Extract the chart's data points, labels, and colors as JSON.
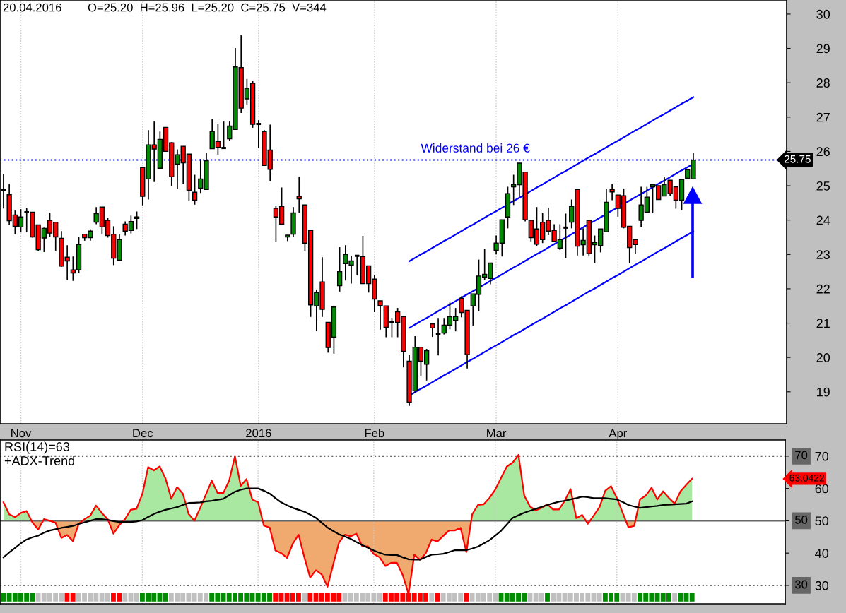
{
  "chart_data": [
    {
      "type": "candlestick",
      "title": "20.04.2016",
      "subtitle": "O=25.20  H=25.96  L=25.20  C=25.75  V=344",
      "categories": [
        null,
        null,
        null,
        "Nov",
        null,
        null,
        null,
        null,
        null,
        null,
        null,
        null,
        null,
        null,
        null,
        null,
        null,
        null,
        null,
        null,
        null,
        null,
        null,
        null,
        "Dec",
        null,
        null,
        null,
        null,
        null,
        null,
        null,
        null,
        null,
        null,
        null,
        null,
        null,
        null,
        null,
        null,
        null,
        null,
        null,
        "2016",
        null,
        null,
        null,
        null,
        null,
        null,
        null,
        null,
        null,
        null,
        null,
        null,
        null,
        null,
        null,
        null,
        null,
        null,
        null,
        "Feb",
        null,
        null,
        null,
        null,
        null,
        null,
        null,
        null,
        null,
        null,
        null,
        null,
        null,
        null,
        null,
        null,
        null,
        null,
        null,
        null,
        "Mar",
        null,
        null,
        null,
        null,
        null,
        null,
        null,
        null,
        null,
        null,
        null,
        null,
        null,
        null,
        null,
        null,
        null,
        null,
        null,
        null,
        "Apr",
        null,
        null,
        null,
        null,
        null,
        null,
        null,
        null,
        null,
        null,
        null,
        null,
        null,
        null,
        null,
        null,
        null,
        null,
        null,
        null,
        null,
        null,
        null,
        null,
        null,
        null,
        null,
        null,
        null
      ],
      "ohlc": [
        [
          24.87,
          25.34,
          24.34,
          24.87
        ],
        [
          24.74,
          25.06,
          23.87,
          23.98
        ],
        [
          24.15,
          24.28,
          23.59,
          23.82
        ],
        [
          23.8,
          24.32,
          23.64,
          24.09
        ],
        [
          24.23,
          24.36,
          23.65,
          24.23
        ],
        [
          24.23,
          24.23,
          23.49,
          23.51
        ],
        [
          23.86,
          23.86,
          23.11,
          23.14
        ],
        [
          23.48,
          23.78,
          23.07,
          23.76
        ],
        [
          23.99,
          24.22,
          23.5,
          23.62
        ],
        [
          23.94,
          23.94,
          23.11,
          23.51
        ],
        [
          23.47,
          23.68,
          22.64,
          22.66
        ],
        [
          22.92,
          23.27,
          22.25,
          22.81
        ],
        [
          22.55,
          22.94,
          22.23,
          22.46
        ],
        [
          22.55,
          23.5,
          22.45,
          23.29
        ],
        [
          23.59,
          23.59,
          23.4,
          23.49
        ],
        [
          23.49,
          23.73,
          23.4,
          23.68
        ],
        [
          23.94,
          24.38,
          23.88,
          24.19
        ],
        [
          24.38,
          24.38,
          23.59,
          23.8
        ],
        [
          23.99,
          24.07,
          23.49,
          23.55
        ],
        [
          23.59,
          23.82,
          22.69,
          22.89
        ],
        [
          22.83,
          23.59,
          22.83,
          23.43
        ],
        [
          23.88,
          23.96,
          23.55,
          23.68
        ],
        [
          23.7,
          24.13,
          23.61,
          23.96
        ],
        [
          24.09,
          24.25,
          23.74,
          24.05
        ],
        [
          25.53,
          25.53,
          24.43,
          24.69
        ],
        [
          25.2,
          26.62,
          24.6,
          26.19
        ],
        [
          26.19,
          26.87,
          25.11,
          26.07
        ],
        [
          25.51,
          26.58,
          25.51,
          26.35
        ],
        [
          26.7,
          26.7,
          26.0,
          26.0
        ],
        [
          26.25,
          26.27,
          24.99,
          25.26
        ],
        [
          25.63,
          26.06,
          24.9,
          25.9
        ],
        [
          26.15,
          26.15,
          25.05,
          25.67
        ],
        [
          25.92,
          25.92,
          24.57,
          24.87
        ],
        [
          24.81,
          25.32,
          24.45,
          24.58
        ],
        [
          24.93,
          25.78,
          24.79,
          25.2
        ],
        [
          24.89,
          25.96,
          24.89,
          25.73
        ],
        [
          26.08,
          26.95,
          26.08,
          26.58
        ],
        [
          26.29,
          26.81,
          25.91,
          26.12
        ],
        [
          26.1,
          26.87,
          26.08,
          26.1
        ],
        [
          26.37,
          26.87,
          26.31,
          26.74
        ],
        [
          26.64,
          29.01,
          26.64,
          28.46
        ],
        [
          28.44,
          29.38,
          27.12,
          27.26
        ],
        [
          27.53,
          28.11,
          27.37,
          27.84
        ],
        [
          27.98,
          28.05,
          26.69,
          26.79
        ],
        [
          26.8,
          26.91,
          26.09,
          26.8
        ],
        [
          26.58,
          26.62,
          25.59,
          25.59
        ],
        [
          26.04,
          26.78,
          25.13,
          25.48
        ],
        [
          24.34,
          24.42,
          23.36,
          24.09
        ],
        [
          24.4,
          24.95,
          23.88,
          23.88
        ],
        [
          23.51,
          23.56,
          23.39,
          23.56
        ],
        [
          23.59,
          24.38,
          23.5,
          24.21
        ],
        [
          24.69,
          25.27,
          24.22,
          24.62
        ],
        [
          24.44,
          24.44,
          23.09,
          23.33
        ],
        [
          23.7,
          23.7,
          21.18,
          21.53
        ],
        [
          21.5,
          21.98,
          20.77,
          21.89
        ],
        [
          22.2,
          22.92,
          21.18,
          21.4
        ],
        [
          21.02,
          21.02,
          20.14,
          20.29
        ],
        [
          20.59,
          21.51,
          20.11,
          21.47
        ],
        [
          22.09,
          23.21,
          21.92,
          22.5
        ],
        [
          22.73,
          23.27,
          22.24,
          23.0
        ],
        [
          22.69,
          22.96,
          22.15,
          22.81
        ],
        [
          22.96,
          22.96,
          22.39,
          22.96
        ],
        [
          22.94,
          23.54,
          22.15,
          22.15
        ],
        [
          22.67,
          22.67,
          21.89,
          22.15
        ],
        [
          22.28,
          22.39,
          21.32,
          21.7
        ],
        [
          21.65,
          21.65,
          20.81,
          21.51
        ],
        [
          21.5,
          21.5,
          20.59,
          20.88
        ],
        [
          21.03,
          21.15,
          20.59,
          21.03
        ],
        [
          21.33,
          21.44,
          20.59,
          21.02
        ],
        [
          21.19,
          21.19,
          19.71,
          20.18
        ],
        [
          19.89,
          20.07,
          18.59,
          18.7
        ],
        [
          19.03,
          20.62,
          18.96,
          20.3
        ],
        [
          20.3,
          20.3,
          19.45,
          19.89
        ],
        [
          19.8,
          20.25,
          19.33,
          20.2
        ],
        [
          20.98,
          20.98,
          20.6,
          20.86
        ],
        [
          20.69,
          21.15,
          20.06,
          20.69
        ],
        [
          20.71,
          21.15,
          20.67,
          20.94
        ],
        [
          20.94,
          21.6,
          20.82,
          21.19
        ],
        [
          21.08,
          21.44,
          20.76,
          21.19
        ],
        [
          21.72,
          21.78,
          21.17,
          21.31
        ],
        [
          21.37,
          21.37,
          19.68,
          20.08
        ],
        [
          21.5,
          21.85,
          20.93,
          21.85
        ],
        [
          21.84,
          22.85,
          21.34,
          22.37
        ],
        [
          22.34,
          23.17,
          22.25,
          22.42
        ],
        [
          22.3,
          22.75,
          22.13,
          22.75
        ],
        [
          23.12,
          23.55,
          23.0,
          23.33
        ],
        [
          23.33,
          24.01,
          22.94,
          24.01
        ],
        [
          24.09,
          24.97,
          23.76,
          24.77
        ],
        [
          24.97,
          25.32,
          24.44,
          25.03
        ],
        [
          25.03,
          25.66,
          24.68,
          25.66
        ],
        [
          25.4,
          25.4,
          23.96,
          24.01
        ],
        [
          23.99,
          23.99,
          23.38,
          23.49
        ],
        [
          23.74,
          24.38,
          23.24,
          23.3
        ],
        [
          23.94,
          24.2,
          23.33,
          23.43
        ],
        [
          23.99,
          24.36,
          23.56,
          23.68
        ],
        [
          23.7,
          23.88,
          23.38,
          23.38
        ],
        [
          23.18,
          23.88,
          23.13,
          23.43
        ],
        [
          23.78,
          24.19,
          22.89,
          23.78
        ],
        [
          23.94,
          24.6,
          23.76,
          24.4
        ],
        [
          24.89,
          24.89,
          22.97,
          23.24
        ],
        [
          23.28,
          23.76,
          22.97,
          23.41
        ],
        [
          23.99,
          23.99,
          22.94,
          23.02
        ],
        [
          23.28,
          23.55,
          22.76,
          23.35
        ],
        [
          23.26,
          23.74,
          23.06,
          23.74
        ],
        [
          23.66,
          24.92,
          23.66,
          24.52
        ],
        [
          24.89,
          25.06,
          24.58,
          24.82
        ],
        [
          24.73,
          24.73,
          24.1,
          24.34
        ],
        [
          24.71,
          24.92,
          23.76,
          23.79
        ],
        [
          23.82,
          23.82,
          22.74,
          23.2
        ],
        [
          23.43,
          23.43,
          23.02,
          23.29
        ],
        [
          23.99,
          24.97,
          23.81,
          24.44
        ],
        [
          24.23,
          24.97,
          24.23,
          24.67
        ],
        [
          24.97,
          25.03,
          24.2,
          25.03
        ],
        [
          25.0,
          25.0,
          24.6,
          24.6
        ],
        [
          24.7,
          25.27,
          24.7,
          25.03
        ],
        [
          25.16,
          25.16,
          24.7,
          24.77
        ],
        [
          24.97,
          24.97,
          24.33,
          24.58
        ],
        [
          24.58,
          25.18,
          24.29,
          25.18
        ],
        [
          25.22,
          25.47,
          25.22,
          25.47
        ],
        [
          25.2,
          25.96,
          25.2,
          25.75
        ],
        null,
        null,
        null,
        null,
        null,
        null,
        null,
        null,
        null,
        null,
        null,
        null,
        null,
        null,
        null,
        null
      ],
      "colors": [
        "#000000",
        "#ff0000",
        "#ff0000",
        "#008c00",
        "#000000",
        "#ff0000",
        "#ff0000",
        "#008c00",
        "#ff0000",
        "#ff0000",
        "#ff0000",
        "#ff0000",
        "#ff0000",
        "#008c00",
        "#ff0000",
        "#008c00",
        "#008c00",
        "#ff0000",
        "#ff0000",
        "#ff0000",
        "#008c00",
        "#ff0000",
        "#008c00",
        "#ff0000",
        "#ff0000",
        "#008c00",
        "#ff0000",
        "#008c00",
        "#ff0000",
        "#ff0000",
        "#008c00",
        "#ff0000",
        "#ff0000",
        "#ff0000",
        "#008c00",
        "#008c00",
        "#008c00",
        "#ff0000",
        "#000000",
        "#008c00",
        "#008c00",
        "#ff0000",
        "#008c00",
        "#ff0000",
        "#000000",
        "#ff0000",
        "#ff0000",
        "#ff0000",
        "#ff0000",
        "#008c00",
        "#008c00",
        "#ff0000",
        "#ff0000",
        "#ff0000",
        "#008c00",
        "#ff0000",
        "#ff0000",
        "#008c00",
        "#008c00",
        "#008c00",
        "#008c00",
        "#000000",
        "#ff0000",
        "#ff0000",
        "#ff0000",
        "#ff0000",
        "#ff0000",
        "#000000",
        "#ff0000",
        "#ff0000",
        "#ff0000",
        "#008c00",
        "#ff0000",
        "#008c00",
        "#ff0000",
        "#000000",
        "#008c00",
        "#008c00",
        "#008c00",
        "#ff0000",
        "#ff0000",
        "#008c00",
        "#008c00",
        "#008c00",
        "#008c00",
        "#008c00",
        "#008c00",
        "#008c00",
        "#008c00",
        "#008c00",
        "#ff0000",
        "#ff0000",
        "#ff0000",
        "#ff0000",
        "#ff0000",
        "#ff0000",
        "#008c00",
        "#000000",
        "#008c00",
        "#ff0000",
        "#008c00",
        "#ff0000",
        "#008c00",
        "#008c00",
        "#008c00",
        "#ff0000",
        "#ff0000",
        "#ff0000",
        "#ff0000",
        "#ff0000",
        "#008c00",
        "#008c00",
        "#008c00",
        "#ff0000",
        "#008c00",
        "#ff0000",
        "#ff0000",
        "#008c00",
        "#008c00",
        "#008c00",
        null,
        null,
        null,
        null,
        null,
        null,
        null,
        null,
        null,
        null,
        null,
        null,
        null,
        null,
        null,
        null
      ],
      "series": [
        {
          "type": "line",
          "color": "#0000ff",
          "values": [
            null,
            null,
            null,
            null,
            null,
            null,
            null,
            null,
            null,
            null,
            null,
            null,
            null,
            null,
            null,
            null,
            null,
            null,
            null,
            null,
            null,
            null,
            null,
            null,
            null,
            null,
            null,
            null,
            null,
            null,
            null,
            null,
            null,
            null,
            null,
            null,
            null,
            null,
            null,
            null,
            null,
            null,
            null,
            null,
            null,
            null,
            null,
            null,
            null,
            null,
            null,
            null,
            null,
            null,
            null,
            null,
            null,
            null,
            null,
            null,
            null,
            null,
            null,
            null,
            null,
            null,
            null,
            null,
            null,
            null,
            22.8,
            22.9,
            23.0,
            23.09,
            23.19,
            23.29,
            23.39,
            23.48,
            23.58,
            23.68,
            23.78,
            23.87,
            23.97,
            24.07,
            24.17,
            24.26,
            24.36,
            24.46,
            24.56,
            24.65,
            24.75,
            24.85,
            24.95,
            25.04,
            25.14,
            25.24,
            25.34,
            25.43,
            25.53,
            25.63,
            25.73,
            25.83,
            25.92,
            26.02,
            26.12,
            26.22,
            26.31,
            26.41,
            26.51,
            26.61,
            26.7,
            26.8,
            26.9,
            27.0,
            27.09,
            27.19,
            27.29,
            27.39,
            27.48,
            27.58,
            null,
            null,
            null,
            null,
            null,
            null,
            null,
            null,
            null,
            null,
            null,
            null,
            null,
            null,
            null,
            null
          ]
        },
        {
          "type": "line",
          "color": "#0000ff",
          "values": [
            null,
            null,
            null,
            null,
            null,
            null,
            null,
            null,
            null,
            null,
            null,
            null,
            null,
            null,
            null,
            null,
            null,
            null,
            null,
            null,
            null,
            null,
            null,
            null,
            null,
            null,
            null,
            null,
            null,
            null,
            null,
            null,
            null,
            null,
            null,
            null,
            null,
            null,
            null,
            null,
            null,
            null,
            null,
            null,
            null,
            null,
            null,
            null,
            null,
            null,
            null,
            null,
            null,
            null,
            null,
            null,
            null,
            null,
            null,
            null,
            null,
            null,
            null,
            null,
            null,
            null,
            null,
            null,
            null,
            null,
            20.86,
            20.96,
            21.06,
            21.15,
            21.25,
            21.35,
            21.45,
            21.54,
            21.64,
            21.74,
            21.84,
            21.93,
            22.03,
            22.13,
            22.23,
            22.32,
            22.42,
            22.52,
            22.62,
            22.71,
            22.81,
            22.91,
            23.01,
            23.1,
            23.2,
            23.3,
            23.4,
            23.49,
            23.59,
            23.69,
            23.79,
            23.89,
            23.98,
            24.08,
            24.18,
            24.28,
            24.37,
            24.47,
            24.57,
            24.67,
            24.76,
            24.86,
            24.96,
            25.06,
            25.15,
            25.25,
            25.35,
            25.45,
            25.54,
            25.64,
            null,
            null,
            null,
            null,
            null,
            null,
            null,
            null,
            null,
            null,
            null,
            null,
            null,
            null,
            null,
            null
          ]
        },
        {
          "type": "line",
          "color": "#0000ff",
          "values": [
            null,
            null,
            null,
            null,
            null,
            null,
            null,
            null,
            null,
            null,
            null,
            null,
            null,
            null,
            null,
            null,
            null,
            null,
            null,
            null,
            null,
            null,
            null,
            null,
            null,
            null,
            null,
            null,
            null,
            null,
            null,
            null,
            null,
            null,
            null,
            null,
            null,
            null,
            null,
            null,
            null,
            null,
            null,
            null,
            null,
            null,
            null,
            null,
            null,
            null,
            null,
            null,
            null,
            null,
            null,
            null,
            null,
            null,
            null,
            null,
            null,
            null,
            null,
            null,
            null,
            null,
            null,
            null,
            null,
            null,
            18.89,
            18.99,
            19.09,
            19.18,
            19.28,
            19.38,
            19.48,
            19.57,
            19.67,
            19.77,
            19.87,
            19.96,
            20.06,
            20.16,
            20.26,
            20.35,
            20.45,
            20.55,
            20.65,
            20.74,
            20.84,
            20.94,
            21.04,
            21.13,
            21.23,
            21.33,
            21.43,
            21.52,
            21.62,
            21.72,
            21.82,
            21.92,
            22.01,
            22.11,
            22.21,
            22.31,
            22.4,
            22.5,
            22.6,
            22.7,
            22.79,
            22.89,
            22.99,
            23.09,
            23.18,
            23.28,
            23.38,
            23.48,
            23.57,
            23.67,
            null,
            null,
            null,
            null,
            null,
            null,
            null,
            null,
            null,
            null,
            null,
            null,
            null,
            null,
            null,
            null
          ]
        }
      ],
      "ylim": [
        18.07,
        30.41
      ],
      "yticks": [
        19,
        20,
        21,
        22,
        23,
        24,
        25,
        26,
        27,
        28,
        29,
        30
      ],
      "grid": "x",
      "ref_lines": [
        {
          "axis": "y",
          "value": 25.75,
          "label": "25.75",
          "color": "#0000ff",
          "line_style": "dotted"
        }
      ],
      "annotations": [
        "Widerstand bei 26 €"
      ]
    },
    {
      "type": "line",
      "title": "RSI(14)=63",
      "subtitle": "+ADX-Trend",
      "categories": [
        null,
        null,
        null,
        null,
        null,
        null,
        null,
        null,
        null,
        null,
        null,
        null,
        null,
        null,
        null,
        null,
        null,
        null,
        null,
        null,
        null,
        null,
        null,
        null,
        null,
        null,
        null,
        null,
        null,
        null,
        null,
        null,
        null,
        null,
        null,
        null,
        null,
        null,
        null,
        null,
        null,
        null,
        null,
        null,
        null,
        null,
        null,
        null,
        null,
        null,
        null,
        null,
        null,
        null,
        null,
        null,
        null,
        null,
        null,
        null,
        null,
        null,
        null,
        null,
        null,
        null,
        null,
        null,
        null,
        null,
        null,
        null,
        null,
        null,
        null,
        null,
        null,
        null,
        null,
        null,
        null,
        null,
        null,
        null,
        null,
        null,
        null,
        null,
        null,
        null,
        null,
        null,
        null,
        null,
        null,
        null,
        null,
        null,
        null,
        null,
        null,
        null,
        null,
        null,
        null,
        null,
        null,
        null,
        null,
        null,
        null,
        null,
        null,
        null,
        null,
        null,
        null,
        null,
        null,
        null
      ],
      "series": [
        {
          "type": "line",
          "color": "#ff0000",
          "values": [
            55.7,
            52.0,
            51.1,
            52.4,
            53.0,
            49.5,
            47.3,
            50.5,
            50.0,
            49.4,
            44.7,
            45.6,
            43.7,
            49.0,
            50.5,
            51.6,
            54.7,
            52.4,
            50.5,
            46.0,
            48.6,
            50.5,
            53.4,
            53.7,
            58.3,
            66.6,
            65.6,
            66.8,
            63.1,
            56.8,
            60.4,
            58.4,
            52.1,
            50.0,
            54.0,
            58.2,
            62.4,
            58.6,
            58.6,
            62.4,
            70.0,
            60.8,
            62.9,
            56.6,
            55.7,
            48.5,
            47.9,
            40.8,
            40.0,
            38.5,
            42.9,
            45.7,
            38.7,
            32.4,
            34.7,
            33.4,
            29.6,
            36.6,
            43.3,
            45.7,
            45.2,
            46.0,
            42.1,
            42.1,
            39.7,
            38.7,
            36.0,
            37.0,
            37.0,
            33.2,
            27.3,
            39.5,
            37.9,
            40.0,
            44.2,
            43.6,
            45.3,
            47.0,
            47.0,
            47.8,
            40.3,
            52.0,
            54.9,
            55.1,
            57.1,
            59.7,
            63.3,
            66.8,
            68.0,
            70.4,
            57.8,
            54.4,
            53.2,
            54.0,
            55.1,
            53.5,
            53.5,
            56.2,
            59.8,
            50.8,
            51.8,
            49.1,
            51.6,
            54.2,
            59.3,
            60.7,
            57.1,
            52.5,
            48.0,
            48.4,
            56.6,
            57.8,
            60.2,
            56.6,
            59.1,
            57.1,
            55.3,
            59.1,
            61.1,
            63.0
          ]
        },
        {
          "type": "line",
          "color": "#000000",
          "values": [
            38.7,
            40.2,
            41.6,
            43.0,
            44.2,
            44.9,
            45.4,
            46.3,
            47.0,
            47.4,
            47.8,
            48.1,
            48.4,
            49.0,
            49.5,
            50.0,
            50.5,
            50.5,
            50.3,
            49.9,
            49.6,
            49.6,
            49.6,
            49.8,
            50.2,
            51.2,
            52.1,
            52.8,
            53.4,
            53.8,
            54.2,
            54.9,
            55.5,
            55.6,
            55.7,
            56.0,
            56.2,
            56.5,
            56.8,
            57.9,
            59.0,
            59.6,
            60.0,
            60.0,
            60.0,
            59.3,
            58.4,
            57.0,
            55.7,
            54.8,
            54.0,
            53.4,
            52.8,
            51.9,
            50.9,
            49.4,
            47.9,
            46.8,
            45.8,
            45.1,
            44.4,
            43.4,
            42.5,
            41.6,
            40.8,
            40.1,
            39.5,
            39.4,
            39.4,
            38.7,
            38.1,
            38.0,
            38.0,
            38.8,
            39.5,
            39.6,
            39.8,
            40.3,
            40.9,
            40.9,
            40.9,
            41.4,
            42.0,
            43.0,
            44.0,
            45.4,
            46.9,
            48.9,
            50.9,
            51.7,
            52.5,
            53.1,
            53.7,
            54.3,
            54.9,
            55.4,
            55.9,
            56.2,
            56.6,
            57.0,
            57.5,
            57.3,
            57.0,
            57.0,
            57.0,
            56.8,
            56.6,
            55.8,
            54.9,
            54.4,
            54.0,
            54.2,
            54.4,
            54.6,
            54.9,
            55.0,
            55.1,
            55.2,
            55.3,
            56.0
          ]
        },
        {
          "type": "bar",
          "base": [
            25.0,
            25.0,
            25.0,
            25.0,
            25.0,
            25.0,
            25.0,
            25.0,
            25.0,
            25.0,
            25.0,
            25.0,
            25.0,
            25.0,
            25.0,
            25.0,
            25.0,
            25.0,
            25.0,
            25.0,
            25.0,
            25.0,
            25.0,
            25.0,
            25.0,
            25.0,
            25.0,
            25.0,
            25.0,
            25.0,
            25.0,
            25.0,
            25.0,
            25.0,
            25.0,
            25.0,
            25.0,
            25.0,
            25.0,
            25.0,
            25.0,
            25.0,
            25.0,
            25.0,
            25.0,
            25.0,
            25.0,
            25.0,
            25.0,
            25.0,
            25.0,
            25.0,
            25.0,
            25.0,
            25.0,
            25.0,
            25.0,
            25.0,
            25.0,
            25.0,
            25.0,
            25.0,
            25.0,
            25.0,
            25.0,
            25.0,
            25.0,
            25.0,
            25.0,
            25.0,
            25.0,
            25.0,
            25.0,
            25.0,
            25.0,
            25.0,
            25.0,
            25.0,
            25.0,
            25.0,
            25.0,
            25.0,
            25.0,
            25.0,
            25.0,
            25.0,
            25.0,
            25.0,
            25.0,
            25.0,
            25.0,
            25.0,
            25.0,
            25.0,
            25.0,
            25.0,
            25.0,
            25.0,
            25.0,
            25.0,
            25.0,
            25.0,
            25.0,
            25.0,
            25.0,
            25.0,
            25.0,
            25.0,
            25.0,
            25.0,
            25.0,
            25.0,
            25.0,
            25.0,
            25.0,
            25.0,
            25.0,
            25.0,
            25.0,
            25.0
          ],
          "values": [
            2.6,
            2.6,
            2.6,
            2.6,
            2.6,
            2.6,
            2.6,
            2.6,
            2.6,
            2.6,
            2.6,
            2.6,
            2.6,
            2.6,
            2.6,
            2.6,
            2.6,
            2.6,
            2.6,
            2.6,
            2.6,
            2.6,
            2.6,
            2.6,
            2.6,
            2.6,
            2.6,
            2.6,
            2.6,
            2.6,
            2.6,
            2.6,
            2.6,
            2.6,
            2.6,
            2.6,
            2.6,
            2.6,
            2.6,
            2.6,
            2.6,
            2.6,
            2.6,
            2.6,
            2.6,
            2.6,
            2.6,
            2.6,
            2.6,
            2.6,
            2.6,
            2.6,
            2.6,
            2.6,
            2.6,
            2.6,
            2.6,
            2.6,
            2.6,
            2.6,
            2.6,
            2.6,
            2.6,
            2.6,
            2.6,
            2.6,
            2.6,
            2.6,
            2.6,
            2.6,
            2.6,
            2.6,
            2.6,
            2.6,
            2.6,
            2.6,
            2.6,
            2.6,
            2.6,
            2.6,
            2.6,
            2.6,
            2.6,
            2.6,
            2.6,
            2.6,
            2.6,
            2.6,
            2.6,
            2.6,
            2.6,
            2.6,
            2.6,
            2.6,
            2.6,
            2.6,
            2.6,
            2.6,
            2.6,
            2.6,
            2.6,
            2.6,
            2.6,
            2.6,
            2.6,
            2.6,
            2.6,
            2.6,
            2.6,
            2.6,
            2.6,
            2.6,
            2.6,
            2.6,
            2.6,
            2.6,
            2.6,
            2.6,
            2.6,
            2.6
          ],
          "colors": [
            "#008c00",
            "#008c00",
            "#008c00",
            "#008c00",
            "#008c00",
            "#008c00",
            "#c0c0c0",
            "#c0c0c0",
            "#c0c0c0",
            "#c0c0c0",
            "#c0c0c0",
            "#ff0000",
            "#ff0000",
            "#c0c0c0",
            "#c0c0c0",
            "#c0c0c0",
            "#c0c0c0",
            "#c0c0c0",
            "#c0c0c0",
            "#ff0000",
            "#ff0000",
            "#c0c0c0",
            "#c0c0c0",
            "#c0c0c0",
            "#008c00",
            "#008c00",
            "#008c00",
            "#008c00",
            "#008c00",
            "#c0c0c0",
            "#c0c0c0",
            "#c0c0c0",
            "#c0c0c0",
            "#c0c0c0",
            "#c0c0c0",
            "#c0c0c0",
            "#008c00",
            "#008c00",
            "#008c00",
            "#008c00",
            "#008c00",
            "#008c00",
            "#008c00",
            "#008c00",
            "#008c00",
            "#008c00",
            "#008c00",
            "#ff0000",
            "#ff0000",
            "#ff0000",
            "#ff0000",
            "#ff0000",
            "#c0c0c0",
            "#ff0000",
            "#ff0000",
            "#ff0000",
            "#ff0000",
            "#ff0000",
            "#ff0000",
            "#c0c0c0",
            "#c0c0c0",
            "#c0c0c0",
            "#c0c0c0",
            "#c0c0c0",
            "#c0c0c0",
            "#c0c0c0",
            "#ff0000",
            "#ff0000",
            "#ff0000",
            "#ff0000",
            "#ff0000",
            "#ff0000",
            "#ff0000",
            "#ff0000",
            "#c0c0c0",
            "#ff0000",
            "#c0c0c0",
            "#c0c0c0",
            "#c0c0c0",
            "#c0c0c0",
            "#ff0000",
            "#c0c0c0",
            "#c0c0c0",
            "#c0c0c0",
            "#c0c0c0",
            "#c0c0c0",
            "#008c00",
            "#008c00",
            "#008c00",
            "#008c00",
            "#008c00",
            "#c0c0c0",
            "#c0c0c0",
            "#c0c0c0",
            "#008c00",
            "#c0c0c0",
            "#c0c0c0",
            "#c0c0c0",
            "#c0c0c0",
            "#c0c0c0",
            "#c0c0c0",
            "#c0c0c0",
            "#c0c0c0",
            "#c0c0c0",
            "#008c00",
            "#008c00",
            "#008c00",
            "#c0c0c0",
            "#c0c0c0",
            "#c0c0c0",
            "#008c00",
            "#008c00",
            "#008c00",
            "#008c00",
            "#008c00",
            "#008c00",
            "#c0c0c0",
            "#008c00",
            "#008c00",
            "#008c00"
          ]
        }
      ],
      "ylim": [
        24.3,
        75.0
      ],
      "yticks": [
        30,
        40,
        50,
        60,
        70
      ],
      "grid": "x",
      "tick_labels": "y",
      "ref_lines": [
        {
          "axis": "y",
          "value": 70,
          "label": "70",
          "color": "#666666",
          "line_style": "dotted"
        },
        {
          "axis": "y",
          "value": 50,
          "label": "50",
          "color": "#666666",
          "line_style": "solid"
        },
        {
          "axis": "y",
          "value": 30,
          "label": "30",
          "color": "#666666",
          "line_style": "dotted"
        }
      ],
      "annotations": [
        "63.0422"
      ]
    }
  ]
}
